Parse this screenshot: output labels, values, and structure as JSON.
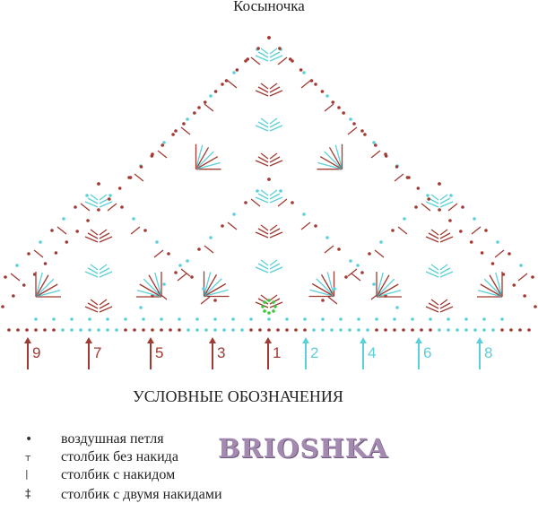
{
  "title": "Косыночка",
  "colors": {
    "odd_rows": "#a03a32",
    "even_rows": "#5ccfd8",
    "center": "#3cc83c"
  },
  "row_markers": [
    {
      "label": "9",
      "color": "odd"
    },
    {
      "label": "7",
      "color": "odd"
    },
    {
      "label": "5",
      "color": "odd"
    },
    {
      "label": "3",
      "color": "odd"
    },
    {
      "label": "1",
      "color": "odd"
    },
    {
      "label": "2",
      "color": "even"
    },
    {
      "label": "4",
      "color": "even"
    },
    {
      "label": "6",
      "color": "even"
    },
    {
      "label": "8",
      "color": "even"
    }
  ],
  "legend": {
    "heading": "УСЛОВНЫЕ ОБОЗНАЧЕНИЯ",
    "items": [
      {
        "symbol": "•",
        "label": "воздушная петля"
      },
      {
        "symbol": "т",
        "label": "столбик без накида"
      },
      {
        "symbol": "|",
        "label": "столбик с накидом"
      },
      {
        "symbol": "‡",
        "label": "столбик с двумя накидами"
      }
    ]
  },
  "watermark": "BRIOSHKA"
}
